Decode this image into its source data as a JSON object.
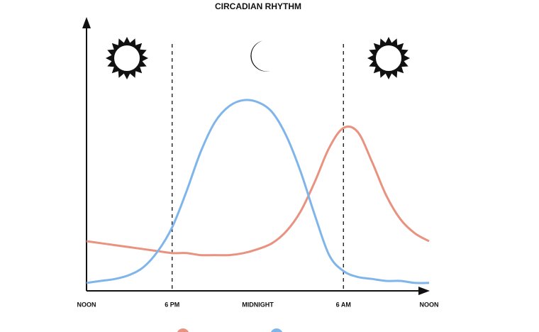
{
  "chart_data": {
    "type": "line",
    "title": "CIRCADIAN RHYTHM",
    "categories": [
      "NOON",
      null,
      null,
      null,
      null,
      null,
      "6 PM",
      null,
      null,
      null,
      null,
      null,
      "MIDNIGHT",
      null,
      null,
      null,
      null,
      null,
      "6 AM",
      null,
      null,
      null,
      null,
      null,
      "NOON"
    ],
    "series": [
      {
        "color": "#e8927f",
        "values": [
          25,
          24,
          23,
          22,
          21,
          20,
          19,
          19,
          18,
          18,
          18,
          19,
          21,
          24,
          30,
          40,
          55,
          72,
          82,
          80,
          65,
          48,
          36,
          29,
          25
        ]
      },
      {
        "color": "#7fb5ea",
        "values": [
          4,
          5,
          6,
          8,
          12,
          20,
          32,
          50,
          70,
          85,
          93,
          96,
          95,
          90,
          78,
          60,
          38,
          18,
          10,
          7,
          6,
          5,
          5,
          4,
          4
        ]
      }
    ],
    "ylim": [
      0,
      100
    ]
  }
}
